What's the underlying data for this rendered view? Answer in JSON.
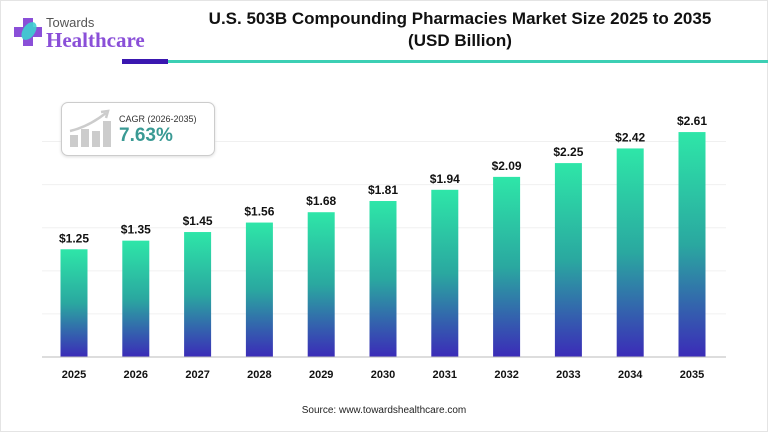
{
  "brand": {
    "line1": "Towards",
    "line2": "Healthcare"
  },
  "title": {
    "line1": "U.S. 503B Compounding Pharmacies Market Size 2025 to 2035",
    "line2": "(USD Billion)"
  },
  "cagr": {
    "label": "CAGR (2026-2035)",
    "value": "7.63%",
    "icon": "growth-bar-chart-icon"
  },
  "source": "Source: www.towardshealthcare.com",
  "colors": {
    "bar_top": "#2ee6a8",
    "bar_bottom": "#3b2bb8",
    "cagr_text": "#3a9a94",
    "brand": "#8a4fd8"
  },
  "chart_data": {
    "type": "bar",
    "categories": [
      "2025",
      "2026",
      "2027",
      "2028",
      "2029",
      "2030",
      "2031",
      "2032",
      "2033",
      "2034",
      "2035"
    ],
    "values": [
      1.25,
      1.35,
      1.45,
      1.56,
      1.68,
      1.81,
      1.94,
      2.09,
      2.25,
      2.42,
      2.61
    ],
    "data_labels": [
      "$1.25",
      "$1.35",
      "$1.45",
      "$1.56",
      "$1.68",
      "$1.81",
      "$1.94",
      "$2.09",
      "$2.25",
      "$2.42",
      "$2.61"
    ],
    "ylim": [
      0,
      2.75
    ],
    "grid": true,
    "xlabel": "",
    "ylabel": ""
  }
}
